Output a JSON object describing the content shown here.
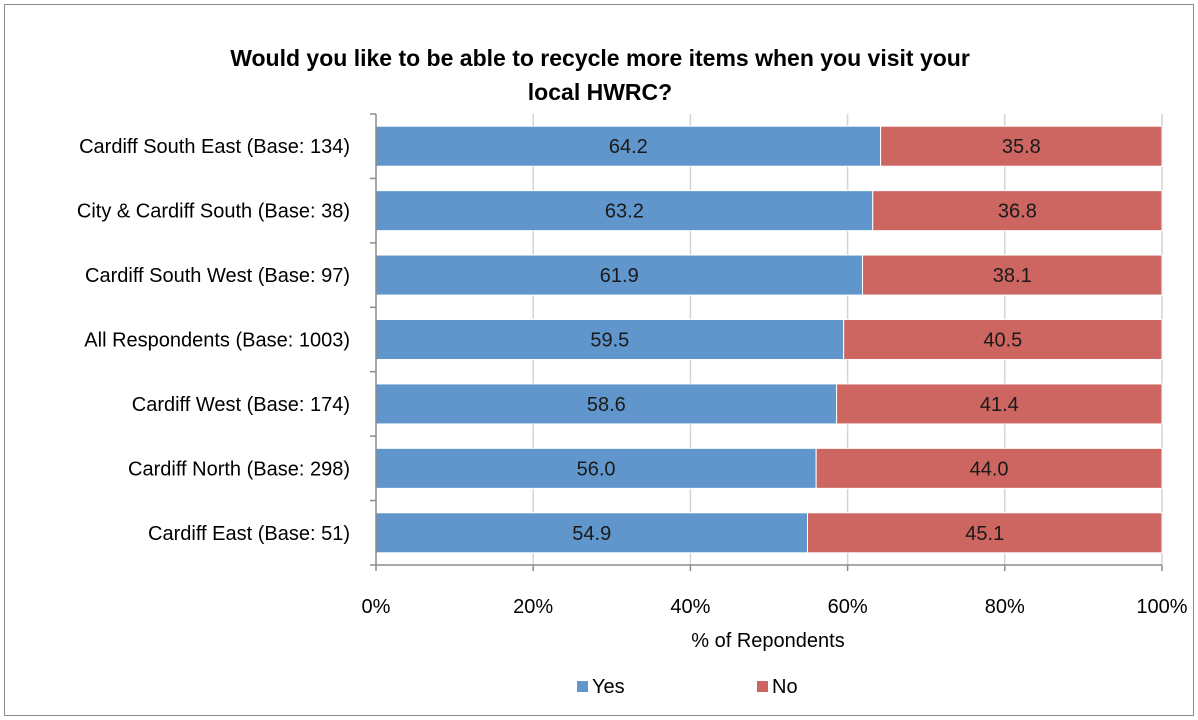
{
  "chart_data": {
    "type": "bar",
    "orientation": "horizontal",
    "stacked": true,
    "title_lines": [
      "Would you like to be able to recycle more items when you visit your",
      "local HWRC?"
    ],
    "categories": [
      "Cardiff South East (Base: 134)",
      "City & Cardiff South (Base: 38)",
      "Cardiff South West (Base: 97)",
      "All Respondents (Base: 1003)",
      "Cardiff West (Base: 174)",
      "Cardiff North (Base: 298)",
      "Cardiff East (Base: 51)"
    ],
    "series": [
      {
        "name": "Yes",
        "color": "#6096cb",
        "values": [
          64.2,
          63.2,
          61.9,
          59.5,
          58.6,
          56.0,
          54.9
        ],
        "labels": [
          "64.2",
          "63.2",
          "61.9",
          "59.5",
          "58.6",
          "56.0",
          "54.9"
        ]
      },
      {
        "name": "No",
        "color": "#cd6560",
        "values": [
          35.8,
          36.8,
          38.1,
          40.5,
          41.4,
          44.0,
          45.1
        ],
        "labels": [
          "35.8",
          "36.8",
          "38.1",
          "40.5",
          "41.4",
          "44.0",
          "45.1"
        ]
      }
    ],
    "xlim": [
      0,
      100
    ],
    "xticks": [
      "0%",
      "20%",
      "40%",
      "60%",
      "80%",
      "100%"
    ],
    "xlabel": "% of Repondents",
    "grid": true,
    "legend_position": "bottom"
  }
}
